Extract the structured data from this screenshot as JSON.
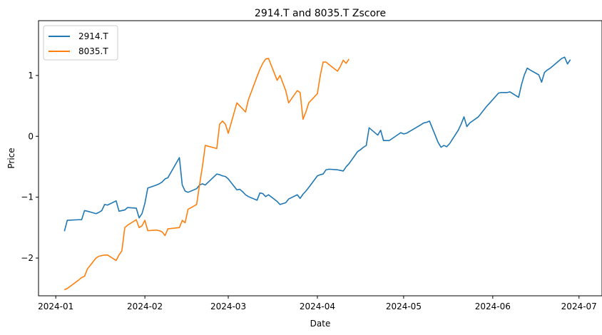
{
  "chart_data": {
    "type": "line",
    "title": "2914.T and 8035.T Zscore",
    "xlabel": "Date",
    "ylabel": "Price",
    "xlim": [
      "2023-12-26",
      "2024-07-09"
    ],
    "ylim": [
      -2.62,
      1.9
    ],
    "grid": false,
    "legend_position": "top-left",
    "x_ticks": [
      "2024-01",
      "2024-02",
      "2024-03",
      "2024-04",
      "2024-05",
      "2024-06",
      "2024-07"
    ],
    "y_ticks": [
      "−2",
      "−1",
      "0",
      "1"
    ],
    "y_tick_values": [
      -2,
      -1,
      0,
      1
    ],
    "series": [
      {
        "name": "2914.T",
        "color": "#1f77b4",
        "points": [
          [
            "2024-01-04",
            -1.56
          ],
          [
            "2024-01-05",
            -1.38
          ],
          [
            "2024-01-09",
            -1.37
          ],
          [
            "2024-01-10",
            -1.37
          ],
          [
            "2024-01-11",
            -1.22
          ],
          [
            "2024-01-12",
            -1.23
          ],
          [
            "2024-01-15",
            -1.27
          ],
          [
            "2024-01-16",
            -1.25
          ],
          [
            "2024-01-17",
            -1.22
          ],
          [
            "2024-01-18",
            -1.12
          ],
          [
            "2024-01-19",
            -1.13
          ],
          [
            "2024-01-22",
            -1.06
          ],
          [
            "2024-01-23",
            -1.23
          ],
          [
            "2024-01-24",
            -1.22
          ],
          [
            "2024-01-25",
            -1.21
          ],
          [
            "2024-01-26",
            -1.17
          ],
          [
            "2024-01-29",
            -1.18
          ],
          [
            "2024-01-30",
            -1.34
          ],
          [
            "2024-01-31",
            -1.27
          ],
          [
            "2024-02-01",
            -1.1
          ],
          [
            "2024-02-02",
            -0.85
          ],
          [
            "2024-02-05",
            -0.8
          ],
          [
            "2024-02-06",
            -0.78
          ],
          [
            "2024-02-07",
            -0.75
          ],
          [
            "2024-02-08",
            -0.7
          ],
          [
            "2024-02-09",
            -0.68
          ],
          [
            "2024-02-13",
            -0.35
          ],
          [
            "2024-02-14",
            -0.8
          ],
          [
            "2024-02-15",
            -0.9
          ],
          [
            "2024-02-16",
            -0.92
          ],
          [
            "2024-02-19",
            -0.86
          ],
          [
            "2024-02-20",
            -0.8
          ],
          [
            "2024-02-21",
            -0.78
          ],
          [
            "2024-02-22",
            -0.8
          ],
          [
            "2024-02-26",
            -0.62
          ],
          [
            "2024-02-27",
            -0.63
          ],
          [
            "2024-02-28",
            -0.65
          ],
          [
            "2024-02-29",
            -0.66
          ],
          [
            "2024-03-01",
            -0.7
          ],
          [
            "2024-03-04",
            -0.88
          ],
          [
            "2024-03-05",
            -0.87
          ],
          [
            "2024-03-06",
            -0.91
          ],
          [
            "2024-03-07",
            -0.96
          ],
          [
            "2024-03-08",
            -0.99
          ],
          [
            "2024-03-11",
            -1.05
          ],
          [
            "2024-03-12",
            -0.93
          ],
          [
            "2024-03-13",
            -0.94
          ],
          [
            "2024-03-14",
            -0.99
          ],
          [
            "2024-03-15",
            -0.96
          ],
          [
            "2024-03-18",
            -1.07
          ],
          [
            "2024-03-19",
            -1.12
          ],
          [
            "2024-03-21",
            -1.09
          ],
          [
            "2024-03-22",
            -1.03
          ],
          [
            "2024-03-25",
            -0.96
          ],
          [
            "2024-03-26",
            -1.02
          ],
          [
            "2024-03-27",
            -0.95
          ],
          [
            "2024-03-28",
            -0.9
          ],
          [
            "2024-03-29",
            -0.84
          ],
          [
            "2024-04-01",
            -0.65
          ],
          [
            "2024-04-02",
            -0.63
          ],
          [
            "2024-04-03",
            -0.62
          ],
          [
            "2024-04-04",
            -0.55
          ],
          [
            "2024-04-05",
            -0.54
          ],
          [
            "2024-04-08",
            -0.55
          ],
          [
            "2024-04-09",
            -0.56
          ],
          [
            "2024-04-10",
            -0.57
          ],
          [
            "2024-04-11",
            -0.5
          ],
          [
            "2024-04-12",
            -0.45
          ],
          [
            "2024-04-15",
            -0.25
          ],
          [
            "2024-04-16",
            -0.22
          ],
          [
            "2024-04-17",
            -0.18
          ],
          [
            "2024-04-18",
            -0.15
          ],
          [
            "2024-04-19",
            0.14
          ],
          [
            "2024-04-22",
            0.02
          ],
          [
            "2024-04-23",
            0.1
          ],
          [
            "2024-04-24",
            -0.07
          ],
          [
            "2024-04-25",
            -0.07
          ],
          [
            "2024-04-26",
            -0.07
          ],
          [
            "2024-04-30",
            0.06
          ],
          [
            "2024-05-01",
            0.04
          ],
          [
            "2024-05-02",
            0.05
          ],
          [
            "2024-05-07",
            0.19
          ],
          [
            "2024-05-08",
            0.22
          ],
          [
            "2024-05-09",
            0.23
          ],
          [
            "2024-05-10",
            0.25
          ],
          [
            "2024-05-13",
            -0.1
          ],
          [
            "2024-05-14",
            -0.18
          ],
          [
            "2024-05-15",
            -0.15
          ],
          [
            "2024-05-16",
            -0.17
          ],
          [
            "2024-05-17",
            -0.12
          ],
          [
            "2024-05-20",
            0.1
          ],
          [
            "2024-05-21",
            0.2
          ],
          [
            "2024-05-22",
            0.32
          ],
          [
            "2024-05-23",
            0.16
          ],
          [
            "2024-05-24",
            0.22
          ],
          [
            "2024-05-27",
            0.32
          ],
          [
            "2024-05-28",
            0.38
          ],
          [
            "2024-05-29",
            0.44
          ],
          [
            "2024-05-30",
            0.5
          ],
          [
            "2024-05-31",
            0.55
          ],
          [
            "2024-06-03",
            0.71
          ],
          [
            "2024-06-04",
            0.72
          ],
          [
            "2024-06-05",
            0.72
          ],
          [
            "2024-06-06",
            0.72
          ],
          [
            "2024-06-07",
            0.73
          ],
          [
            "2024-06-10",
            0.64
          ],
          [
            "2024-06-11",
            0.85
          ],
          [
            "2024-06-12",
            1.01
          ],
          [
            "2024-06-13",
            1.12
          ],
          [
            "2024-06-14",
            1.09
          ],
          [
            "2024-06-17",
            1.01
          ],
          [
            "2024-06-18",
            0.89
          ],
          [
            "2024-06-19",
            1.05
          ],
          [
            "2024-06-20",
            1.09
          ],
          [
            "2024-06-21",
            1.12
          ],
          [
            "2024-06-24",
            1.24
          ],
          [
            "2024-06-25",
            1.28
          ],
          [
            "2024-06-26",
            1.3
          ],
          [
            "2024-06-27",
            1.19
          ],
          [
            "2024-06-28",
            1.26
          ]
        ],
        "points_tail": [
          [
            "2024-04-24",
            -0.07
          ],
          [
            "2024-04-29",
            -0.07
          ]
        ]
      },
      {
        "name": "8035.T",
        "color": "#ff7f0e",
        "points": [
          [
            "2024-01-04",
            -2.52
          ],
          [
            "2024-01-05",
            -2.5
          ],
          [
            "2024-01-09",
            -2.36
          ],
          [
            "2024-01-10",
            -2.32
          ],
          [
            "2024-01-11",
            -2.3
          ],
          [
            "2024-01-12",
            -2.18
          ],
          [
            "2024-01-15",
            -2.0
          ],
          [
            "2024-01-16",
            -1.97
          ],
          [
            "2024-01-17",
            -1.96
          ],
          [
            "2024-01-18",
            -1.95
          ],
          [
            "2024-01-19",
            -1.95
          ],
          [
            "2024-01-22",
            -2.04
          ],
          [
            "2024-01-23",
            -1.95
          ],
          [
            "2024-01-24",
            -1.88
          ],
          [
            "2024-01-25",
            -1.5
          ],
          [
            "2024-01-26",
            -1.46
          ],
          [
            "2024-01-29",
            -1.37
          ],
          [
            "2024-01-30",
            -1.5
          ],
          [
            "2024-01-31",
            -1.47
          ],
          [
            "2024-02-01",
            -1.38
          ],
          [
            "2024-02-02",
            -1.55
          ],
          [
            "2024-02-05",
            -1.54
          ],
          [
            "2024-02-06",
            -1.55
          ],
          [
            "2024-02-07",
            -1.57
          ],
          [
            "2024-02-08",
            -1.63
          ],
          [
            "2024-02-09",
            -1.52
          ],
          [
            "2024-02-13",
            -1.5
          ],
          [
            "2024-02-14",
            -1.38
          ],
          [
            "2024-02-15",
            -1.42
          ],
          [
            "2024-02-16",
            -1.2
          ],
          [
            "2024-02-19",
            -1.12
          ],
          [
            "2024-02-20",
            -0.8
          ],
          [
            "2024-02-21",
            -0.5
          ],
          [
            "2024-02-22",
            -0.15
          ],
          [
            "2024-02-26",
            -0.2
          ],
          [
            "2024-02-27",
            0.2
          ],
          [
            "2024-02-28",
            0.25
          ],
          [
            "2024-02-29",
            0.2
          ],
          [
            "2024-03-01",
            0.05
          ],
          [
            "2024-03-04",
            0.55
          ],
          [
            "2024-03-05",
            0.5
          ],
          [
            "2024-03-06",
            0.45
          ],
          [
            "2024-03-07",
            0.4
          ],
          [
            "2024-03-08",
            0.6
          ],
          [
            "2024-03-11",
            0.98
          ],
          [
            "2024-03-12",
            1.1
          ],
          [
            "2024-03-13",
            1.2
          ],
          [
            "2024-03-14",
            1.27
          ],
          [
            "2024-03-15",
            1.28
          ],
          [
            "2024-03-18",
            0.92
          ],
          [
            "2024-03-19",
            1.0
          ],
          [
            "2024-03-21",
            0.75
          ],
          [
            "2024-03-22",
            0.55
          ],
          [
            "2024-03-25",
            0.75
          ],
          [
            "2024-03-26",
            0.72
          ],
          [
            "2024-03-27",
            0.28
          ],
          [
            "2024-03-28",
            0.4
          ],
          [
            "2024-03-29",
            0.55
          ],
          [
            "2024-04-01",
            0.7
          ],
          [
            "2024-04-02",
            1.0
          ],
          [
            "2024-04-03",
            1.22
          ],
          [
            "2024-04-04",
            1.22
          ],
          [
            "2024-04-05",
            1.18
          ],
          [
            "2024-04-08",
            1.07
          ],
          [
            "2024-04-09",
            1.15
          ],
          [
            "2024-04-10",
            1.25
          ],
          [
            "2024-04-11",
            1.2
          ],
          [
            "2024-04-12",
            1.27
          ]
        ]
      }
    ]
  }
}
